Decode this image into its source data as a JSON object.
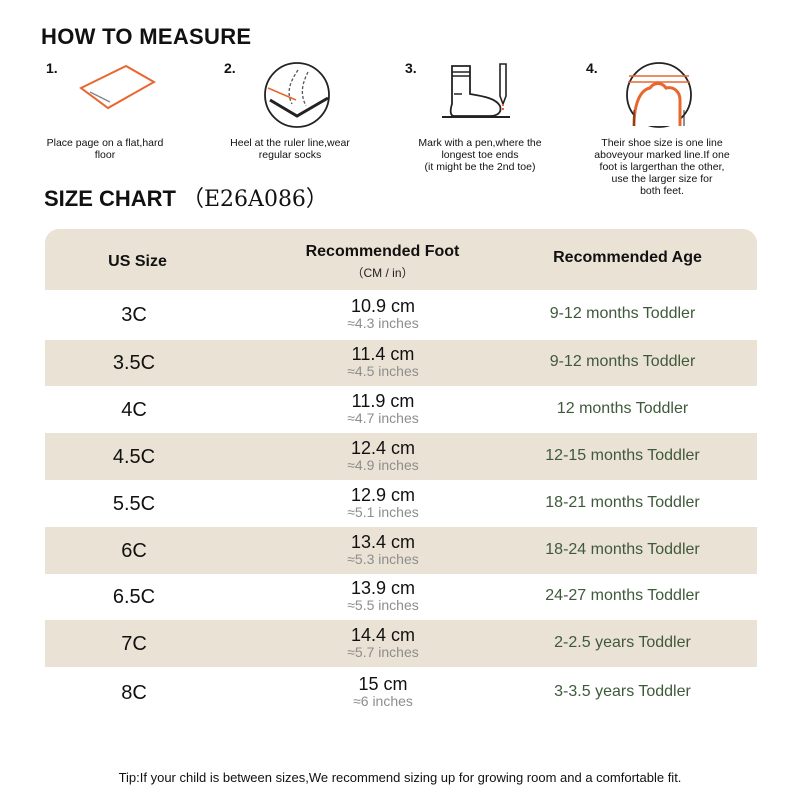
{
  "how_to_measure": {
    "title": "HOW TO MEASURE",
    "steps": [
      {
        "num": "1.",
        "text": "Place page on a flat,hard\nfloor",
        "icon": "paper-sheet-icon"
      },
      {
        "num": "2.",
        "text": "Heel at the ruler line,wear\nregular socks",
        "icon": "heel-ruler-icon"
      },
      {
        "num": "3.",
        "text": "Mark with a pen,where the\nlongest toe ends\n(it might be the 2nd toe)",
        "icon": "sock-pen-icon"
      },
      {
        "num": "4.",
        "text": "Their shoe size is one line\naboveyour marked line.If one\nfoot is largerthan the other,\nuse the larger size for\nboth feet.",
        "icon": "toe-line-icon"
      }
    ]
  },
  "size_chart": {
    "title": "SIZE CHART",
    "code": "（E26A086）",
    "headers": {
      "size": "US Size",
      "foot": "Recommended Foot",
      "foot_sub": "（CM / in）",
      "age": "Recommended Age"
    },
    "rows": [
      {
        "size": "3C",
        "cm": "10.9 cm",
        "inch": "≈4.3 inches",
        "age": "9-12 months Toddler"
      },
      {
        "size": "3.5C",
        "cm": "11.4 cm",
        "inch": "≈4.5 inches",
        "age": "9-12 months Toddler"
      },
      {
        "size": "4C",
        "cm": "11.9 cm",
        "inch": "≈4.7 inches",
        "age": "12 months Toddler"
      },
      {
        "size": "4.5C",
        "cm": "12.4 cm",
        "inch": "≈4.9 inches",
        "age": "12-15 months Toddler"
      },
      {
        "size": "5.5C",
        "cm": "12.9 cm",
        "inch": "≈5.1 inches",
        "age": "18-21 months Toddler"
      },
      {
        "size": "6C",
        "cm": "13.4 cm",
        "inch": "≈5.3 inches",
        "age": "18-24 months Toddler"
      },
      {
        "size": "6.5C",
        "cm": "13.9 cm",
        "inch": "≈5.5 inches",
        "age": "24-27 months Toddler"
      },
      {
        "size": "7C",
        "cm": "14.4 cm",
        "inch": "≈5.7 inches",
        "age": "2-2.5 years Toddler"
      },
      {
        "size": "8C",
        "cm": "15 cm",
        "inch": "≈6 inches",
        "age": "3-3.5 years Toddler"
      }
    ]
  },
  "tip": "Tip:If your child is between sizes,We recommend sizing up for growing room and a comfortable fit.",
  "colors": {
    "accent": "#e8672f",
    "row_band": "#ebe2d6",
    "age_text": "#3e5a3a",
    "inch_text": "#8d8d8d"
  }
}
